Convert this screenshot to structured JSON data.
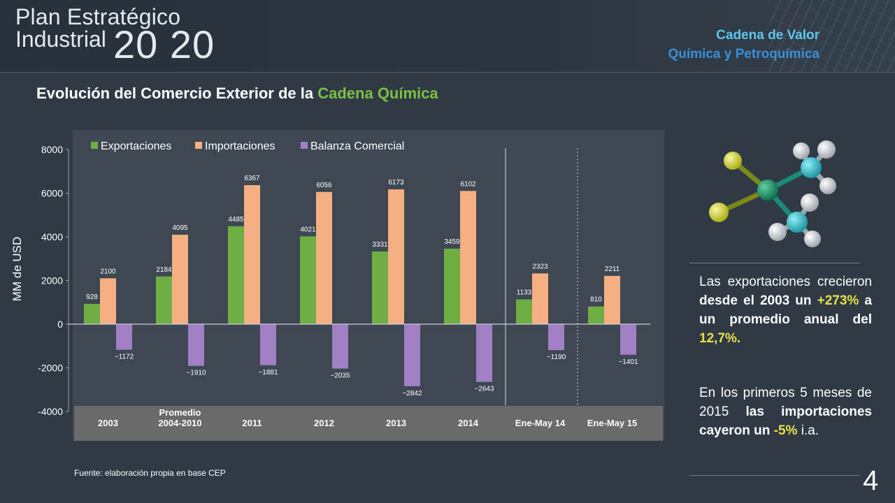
{
  "header": {
    "logo_line1": "Plan Estratégico",
    "logo_line2": "Industrial",
    "logo_year": "20 20",
    "chain_line1": "Cadena de Valor",
    "chain_line2": "Química y Petroquímica"
  },
  "page_title": {
    "prefix": "Evolución del Comercio Exterior de la ",
    "highlight": "Cadena Química"
  },
  "chart_data": {
    "type": "bar",
    "ylabel": "MM de USD",
    "ylim": [
      -4000,
      8000
    ],
    "yticks": [
      8000,
      6000,
      4000,
      2000,
      0,
      -2000,
      -4000
    ],
    "categories": [
      "2003",
      "Promedio\n2004-2010",
      "2011",
      "2012",
      "2013",
      "2014",
      "Ene-May 14",
      "Ene-May 15"
    ],
    "series": [
      {
        "name": "Exportaciones",
        "color": "#6fae44",
        "values": [
          928,
          2184,
          4485,
          4021,
          3331,
          3459,
          1133,
          810
        ]
      },
      {
        "name": "Importaciones",
        "color": "#f4b083",
        "values": [
          2100,
          4095,
          6367,
          6056,
          6173,
          6102,
          2323,
          2211
        ]
      },
      {
        "name": "Balanza Comercial",
        "color": "#a17fc4",
        "values": [
          -1172,
          -1910,
          -1881,
          -2035,
          -2842,
          -2643,
          -1190,
          -1401
        ]
      }
    ],
    "legend_position": "top",
    "separators": [
      {
        "after_index": 5,
        "style": "solid"
      },
      {
        "after_index": 6,
        "style": "dotted"
      }
    ]
  },
  "source": "Fuente: elaboración propia en base CEP",
  "text_block_1": {
    "t1": "Las exportaciones crecieron ",
    "t2": "desde el 2003 un ",
    "t3": "+273%",
    "t4": " a un promedio anual del ",
    "t5": "12,7%."
  },
  "text_block_2": {
    "t1": "En los primeros 5 meses de 2015 ",
    "t2": "las importaciones cayeron un ",
    "t3": "-5%",
    "t4": " i.a."
  },
  "page_number": "4",
  "colors": {
    "background": "#2f3a45",
    "accent_green": "#7bc043",
    "accent_yellow": "#e6e04a",
    "accent_cyan": "#5ec8ec"
  }
}
